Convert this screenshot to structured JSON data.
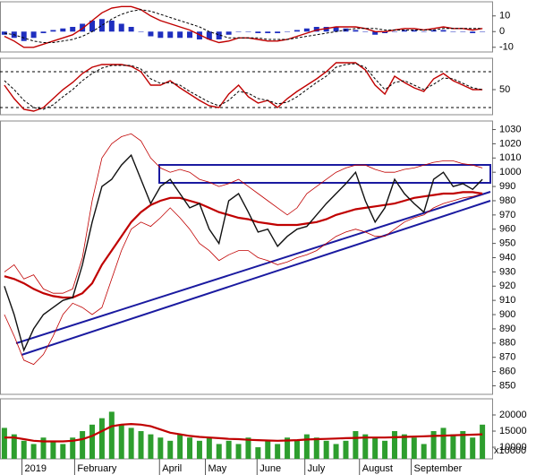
{
  "chart_data": [
    {
      "type": "line",
      "xlim": [
        -0.45,
        50
      ],
      "ylim": [
        -13,
        19
      ],
      "yticks": [
        10,
        0,
        -10
      ],
      "series": [
        {
          "style": "bar",
          "color": "#1f2fbf",
          "values": [
            -2,
            -4,
            -6,
            -4,
            -1,
            1,
            2,
            3,
            5,
            7,
            8,
            7,
            5,
            3,
            0,
            -3,
            -4,
            -4,
            -4,
            -4,
            -5,
            -5,
            -5,
            -2,
            0,
            0,
            -1,
            -1,
            -1,
            0,
            1,
            2,
            3,
            3,
            3,
            2,
            1,
            0,
            -2,
            -1,
            0,
            1,
            1,
            0,
            1,
            1,
            0,
            0,
            -1,
            0
          ]
        },
        {
          "style": "line",
          "color": "#c00000",
          "values": [
            -3,
            -6,
            -10,
            -10,
            -8,
            -6,
            -4,
            -2,
            2,
            7,
            12,
            15,
            16,
            16,
            14,
            10,
            7,
            5,
            3,
            1,
            -2,
            -5,
            -7,
            -6,
            -4,
            -4,
            -5,
            -6,
            -6,
            -5,
            -3,
            -1,
            1,
            2,
            3,
            3,
            3,
            2,
            0,
            0,
            1,
            2,
            2,
            1,
            2,
            3,
            2,
            2,
            1,
            2
          ]
        },
        {
          "style": "dashed",
          "color": "#000000",
          "values": [
            -1,
            -2,
            -4,
            -6,
            -7,
            -7,
            -6,
            -5,
            -3,
            0,
            4,
            8,
            11,
            13,
            14,
            13,
            11,
            9,
            7,
            5,
            3,
            0,
            -2,
            -4,
            -4,
            -4,
            -4,
            -5,
            -5,
            -5,
            -4,
            -3,
            -2,
            -1,
            0,
            1,
            2,
            2,
            2,
            1,
            1,
            1,
            1,
            1,
            1,
            2,
            2,
            2,
            2,
            2
          ]
        }
      ]
    },
    {
      "type": "line",
      "xlim": [
        -0.45,
        50
      ],
      "ylim": [
        22,
        85
      ],
      "yticks": [
        50
      ],
      "reference_lines": [
        70,
        30
      ],
      "series": [
        {
          "style": "line",
          "color": "#c00000",
          "values": [
            55,
            40,
            28,
            26,
            30,
            40,
            50,
            58,
            68,
            75,
            78,
            78,
            78,
            76,
            70,
            55,
            55,
            60,
            52,
            45,
            38,
            32,
            30,
            45,
            55,
            42,
            35,
            38,
            30,
            40,
            48,
            55,
            62,
            70,
            80,
            80,
            80,
            72,
            55,
            45,
            65,
            58,
            52,
            48,
            62,
            68,
            60,
            55,
            50,
            50
          ]
        },
        {
          "style": "dashed",
          "color": "#000000",
          "values": [
            60,
            50,
            38,
            30,
            28,
            33,
            42,
            50,
            60,
            68,
            74,
            77,
            77,
            77,
            73,
            62,
            57,
            58,
            55,
            48,
            42,
            36,
            32,
            38,
            48,
            46,
            40,
            38,
            34,
            36,
            42,
            50,
            58,
            65,
            75,
            78,
            79,
            75,
            62,
            50,
            58,
            60,
            55,
            50,
            56,
            63,
            62,
            57,
            52,
            50
          ]
        }
      ]
    },
    {
      "type": "line",
      "xlim": [
        -0.45,
        50
      ],
      "ylim": [
        844,
        1036
      ],
      "yticks": [
        1030,
        1020,
        1010,
        1000,
        990,
        980,
        970,
        960,
        950,
        940,
        930,
        920,
        910,
        900,
        890,
        880,
        870,
        860,
        850
      ],
      "series": [
        {
          "style": "thin",
          "color": "#c00000",
          "values": [
            930,
            935,
            925,
            928,
            918,
            915,
            915,
            918,
            940,
            980,
            1010,
            1020,
            1025,
            1027,
            1022,
            1010,
            1003,
            1000,
            1002,
            1000,
            995,
            993,
            990,
            992,
            995,
            990,
            985,
            980,
            975,
            970,
            975,
            985,
            990,
            995,
            1000,
            1003,
            1005,
            1005,
            1002,
            1000,
            1000,
            1002,
            1003,
            1005,
            1007,
            1008,
            1008,
            1006,
            1005,
            1003
          ]
        },
        {
          "style": "thin",
          "color": "#c00000",
          "values": [
            900,
            885,
            868,
            865,
            872,
            885,
            900,
            908,
            905,
            900,
            905,
            925,
            945,
            960,
            965,
            962,
            968,
            975,
            968,
            960,
            950,
            945,
            938,
            942,
            945,
            945,
            940,
            938,
            935,
            937,
            940,
            942,
            945,
            950,
            955,
            958,
            960,
            958,
            955,
            955,
            960,
            965,
            968,
            970,
            975,
            978,
            980,
            982,
            983,
            985
          ]
        },
        {
          "style": "thick",
          "color": "#c00000",
          "values": [
            927,
            925,
            922,
            918,
            915,
            913,
            912,
            912,
            915,
            922,
            935,
            945,
            955,
            965,
            972,
            977,
            980,
            982,
            982,
            980,
            978,
            975,
            972,
            970,
            968,
            967,
            965,
            964,
            963,
            963,
            963,
            964,
            965,
            967,
            970,
            972,
            974,
            975,
            976,
            977,
            978,
            980,
            982,
            983,
            984,
            985,
            985,
            986,
            986,
            985
          ]
        },
        {
          "style": "line",
          "color": "#111111",
          "values": [
            920,
            900,
            875,
            890,
            900,
            905,
            910,
            912,
            935,
            965,
            990,
            995,
            1005,
            1012,
            995,
            978,
            990,
            995,
            985,
            975,
            978,
            960,
            950,
            980,
            985,
            972,
            958,
            960,
            948,
            955,
            960,
            962,
            970,
            978,
            985,
            992,
            1000,
            980,
            965,
            975,
            995,
            985,
            978,
            972,
            995,
            1000,
            990,
            992,
            988,
            995
          ]
        }
      ]
    },
    {
      "type": "bar",
      "xlim": [
        -0.45,
        50
      ],
      "ylim": [
        6400,
        25000
      ],
      "yticks": [
        20000,
        15000,
        10000
      ],
      "unit_label": "x10000",
      "xticks": [
        {
          "value": 1.8,
          "label": "2019"
        },
        {
          "value": 7.2,
          "label": "February"
        },
        {
          "value": 15.9,
          "label": "April"
        },
        {
          "value": 20.6,
          "label": "May"
        },
        {
          "value": 25.9,
          "label": "June"
        },
        {
          "value": 30.8,
          "label": "July"
        },
        {
          "value": 36.4,
          "label": "August"
        },
        {
          "value": 41.7,
          "label": "September"
        }
      ],
      "series": [
        {
          "style": "bar",
          "color": "#2e9e2e",
          "values": [
            16000,
            14000,
            12000,
            11000,
            13000,
            12000,
            11000,
            13000,
            15000,
            17000,
            19000,
            21000,
            17000,
            16000,
            15000,
            14000,
            13000,
            12000,
            14000,
            13000,
            12000,
            13000,
            11000,
            12000,
            11000,
            13000,
            10000,
            12000,
            11000,
            13000,
            12000,
            14000,
            13000,
            12000,
            11000,
            12000,
            15000,
            14000,
            13000,
            12000,
            15000,
            14000,
            13000,
            11000,
            15000,
            16000,
            14000,
            15000,
            13000,
            17000
          ]
        },
        {
          "style": "thick",
          "color": "#c00000",
          "values": [
            13000,
            13000,
            12500,
            12000,
            11800,
            11800,
            11800,
            12000,
            12500,
            13500,
            15000,
            16500,
            17000,
            17200,
            17000,
            16500,
            15500,
            14500,
            14000,
            13500,
            13200,
            13000,
            12800,
            12600,
            12500,
            12300,
            12200,
            12100,
            12000,
            12100,
            12200,
            12400,
            12500,
            12600,
            12700,
            12800,
            12900,
            13000,
            13000,
            13000,
            13100,
            13200,
            13300,
            13400,
            13500,
            13600,
            13700,
            13800,
            13900,
            14000
          ]
        }
      ]
    }
  ]
}
